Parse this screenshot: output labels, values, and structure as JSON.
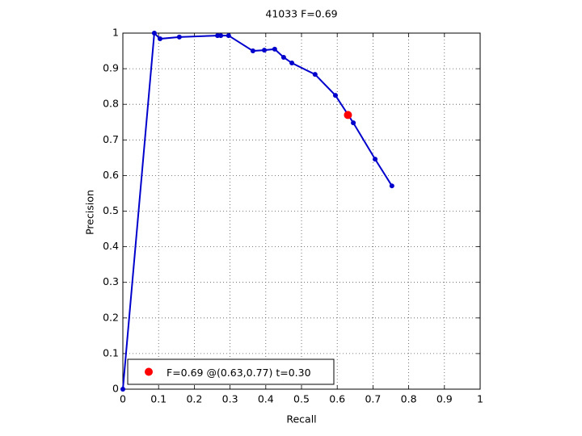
{
  "chart_data": {
    "type": "line",
    "title": "41033 F=0.69",
    "xlabel": "Recall",
    "ylabel": "Precision",
    "xlim": [
      0,
      1
    ],
    "ylim": [
      0,
      1
    ],
    "xticks": [
      0,
      0.1,
      0.2,
      0.3,
      0.4,
      0.5,
      0.6,
      0.7,
      0.8,
      0.9,
      1
    ],
    "yticks": [
      0,
      0.1,
      0.2,
      0.3,
      0.4,
      0.5,
      0.6,
      0.7,
      0.8,
      0.9,
      1
    ],
    "grid": true,
    "legend": "lower left",
    "series": [
      {
        "color": "#0000cc",
        "x": [
          0,
          0.088,
          0.104,
          0.158,
          0.265,
          0.274,
          0.296,
          0.364,
          0.396,
          0.425,
          0.45,
          0.473,
          0.538,
          0.595,
          0.645,
          0.706,
          0.753
        ],
        "values": [
          0,
          1.0,
          0.984,
          0.989,
          0.993,
          0.993,
          0.993,
          0.95,
          0.952,
          0.955,
          0.932,
          0.916,
          0.884,
          0.825,
          0.748,
          0.646,
          0.571
        ]
      },
      {
        "name": "F=0.69 @(0.63,0.77) t=0.30",
        "color": "#ff0000",
        "x": [
          0.63
        ],
        "values": [
          0.77
        ]
      }
    ]
  }
}
